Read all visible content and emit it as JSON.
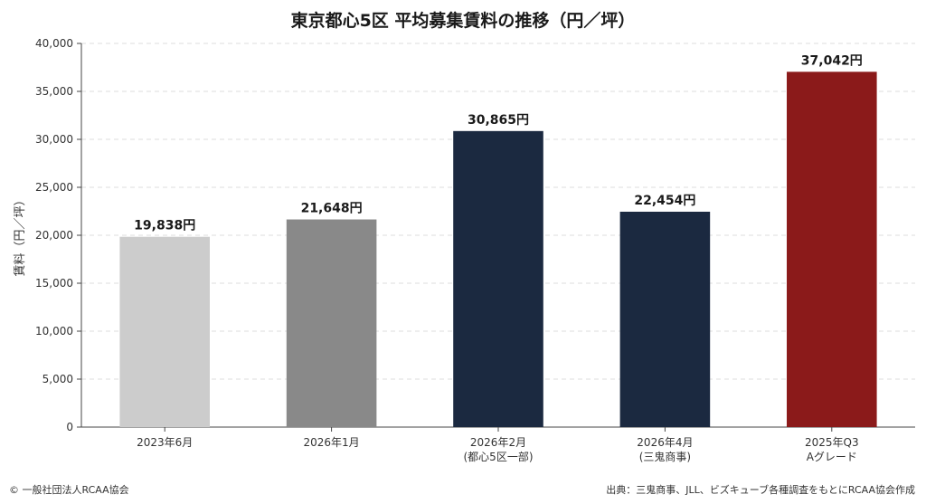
{
  "chart_data": {
    "type": "bar",
    "title": "東京都心5区 平均募集賃料の推移（円／坪）",
    "ylabel": "賃料（円／坪）",
    "xlabel": "",
    "ylim": [
      0,
      40000
    ],
    "yticks": [
      0,
      5000,
      10000,
      15000,
      20000,
      25000,
      30000,
      35000,
      40000
    ],
    "ytick_labels": [
      "0",
      "5,000",
      "10,000",
      "15,000",
      "20,000",
      "25,000",
      "30,000",
      "35,000",
      "40,000"
    ],
    "grid": true,
    "categories": [
      [
        "2023年6月"
      ],
      [
        "2026年1月"
      ],
      [
        "2026年2月",
        "(都心5区一部)"
      ],
      [
        "2026年4月",
        "(三鬼商事)"
      ],
      [
        "2025年Q3",
        "Aグレード"
      ]
    ],
    "values": [
      19838,
      21648,
      30865,
      22454,
      37042
    ],
    "value_labels": [
      "19,838円",
      "21,648円",
      "30,865円",
      "22,454円",
      "37,042円"
    ],
    "colors": [
      "#cccccc",
      "#898989",
      "#1b2940",
      "#1b2940",
      "#8b1a1a"
    ]
  },
  "footer": {
    "copyright": "© 一般社団法人RCAA協会",
    "source": "出典：三鬼商事、JLL、ビズキューブ各種調査をもとにRCAA協会作成"
  }
}
